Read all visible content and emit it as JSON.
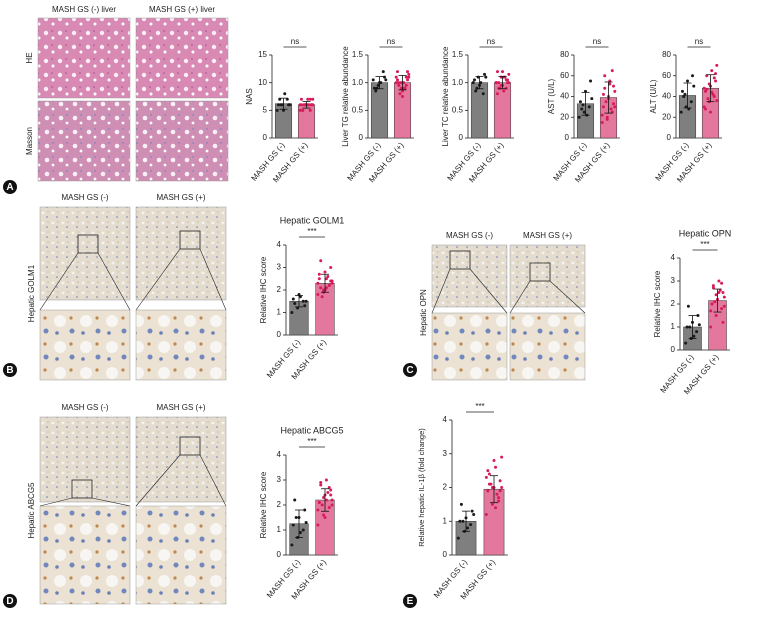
{
  "figure": {
    "A": {
      "letter": "A",
      "columns": [
        "MASH GS (-) liver",
        "MASH GS (+) liver"
      ],
      "rows": [
        "HE",
        "Masson"
      ]
    },
    "B": {
      "letter": "B",
      "columns": [
        "MASH GS (-)",
        "MASH GS (+)"
      ],
      "row": "Hepatic GOLM1"
    },
    "C": {
      "letter": "C",
      "columns": [
        "MASH GS (-)",
        "MASH GS (+)"
      ],
      "row": "Hepatic OPN"
    },
    "D": {
      "letter": "D",
      "columns": [
        "MASH GS (-)",
        "MASH GS (+)"
      ],
      "row": "Hepatic ABCG5"
    },
    "E": {
      "letter": "E"
    }
  },
  "chart_data": [
    {
      "type": "bar",
      "ylabel": "NAS",
      "categories": [
        "MASH GS (-)",
        "MASH GS (+)"
      ],
      "values": [
        6.2,
        6.0
      ],
      "errors": [
        1.0,
        0.6
      ],
      "points": [
        [
          5,
          6,
          7,
          6,
          5,
          6,
          7,
          8,
          6,
          6
        ],
        [
          6,
          6,
          5,
          7,
          6,
          6,
          5,
          6,
          7,
          6,
          6,
          5,
          6,
          7,
          6,
          6,
          6,
          5,
          7,
          6
        ]
      ],
      "colors": [
        "#7f7f7f",
        "#e4779d"
      ],
      "point_colors": [
        "#1a1a1a",
        "#d81b5a"
      ],
      "significance": "ns",
      "ylim": [
        0,
        15
      ],
      "yticks": [
        0,
        5,
        10,
        15
      ]
    },
    {
      "type": "bar",
      "ylabel": "Liver TG relative abundance",
      "categories": [
        "MASH GS (-)",
        "MASH GS (+)"
      ],
      "values": [
        1.0,
        1.0
      ],
      "errors": [
        0.11,
        0.13
      ],
      "points": [
        [
          1.05,
          0.95,
          1.2,
          0.9,
          1.0,
          1.1,
          0.85,
          1.0,
          1.05,
          0.9
        ],
        [
          1.0,
          0.9,
          1.1,
          1.2,
          0.85,
          1.05,
          0.95,
          1.0,
          1.15,
          0.8,
          0.9,
          1.1,
          1.0,
          0.95,
          1.05,
          0.75,
          1.2,
          1.0,
          0.9,
          1.1
        ]
      ],
      "colors": [
        "#7f7f7f",
        "#e4779d"
      ],
      "point_colors": [
        "#1a1a1a",
        "#d81b5a"
      ],
      "significance": "ns",
      "ylim": [
        0,
        1.5
      ],
      "yticks": [
        0,
        0.5,
        {
          "value": 1,
          "label": "1.0"
        },
        1.5
      ]
    },
    {
      "type": "bar",
      "ylabel": "Liver TC relative abundance",
      "categories": [
        "MASH GS (-)",
        "MASH GS (+)"
      ],
      "values": [
        1.0,
        1.0
      ],
      "errors": [
        0.11,
        0.11
      ],
      "points": [
        [
          1.0,
          1.1,
          0.8,
          1.05,
          0.95,
          1.15,
          0.85,
          1.0,
          1.1,
          0.9
        ],
        [
          1.0,
          1.1,
          0.9,
          1.2,
          0.95,
          1.05,
          1.0,
          0.85,
          1.15,
          0.9,
          1.1,
          1.0,
          0.95,
          1.05,
          0.8,
          1.2,
          1.0,
          0.9,
          1.1,
          1.0
        ]
      ],
      "colors": [
        "#7f7f7f",
        "#e4779d"
      ],
      "point_colors": [
        "#1a1a1a",
        "#d81b5a"
      ],
      "significance": "ns",
      "ylim": [
        0,
        1.5
      ],
      "yticks": [
        0,
        0.5,
        {
          "value": 1,
          "label": "1.0"
        },
        1.5
      ]
    },
    {
      "type": "bar",
      "ylabel": "AST (U/L)",
      "categories": [
        "MASH GS (-)",
        "MASH GS (+)"
      ],
      "values": [
        33,
        39
      ],
      "errors": [
        11,
        15
      ],
      "points": [
        [
          20,
          25,
          30,
          35,
          45,
          55,
          28,
          22,
          38,
          32
        ],
        [
          15,
          20,
          25,
          30,
          40,
          50,
          60,
          55,
          45,
          35,
          28,
          22,
          18,
          65,
          42,
          38,
          33,
          48,
          52,
          30
        ]
      ],
      "colors": [
        "#7f7f7f",
        "#e4779d"
      ],
      "point_colors": [
        "#1a1a1a",
        "#d81b5a"
      ],
      "significance": "ns",
      "ylim": [
        0,
        80
      ],
      "yticks": [
        0,
        20,
        40,
        60,
        80
      ]
    },
    {
      "type": "bar",
      "ylabel": "ALT (U/L)",
      "categories": [
        "MASH GS (-)",
        "MASH GS (+)"
      ],
      "values": [
        41,
        48
      ],
      "errors": [
        12,
        13
      ],
      "points": [
        [
          25,
          30,
          35,
          45,
          55,
          60,
          40,
          28,
          50,
          42
        ],
        [
          30,
          35,
          40,
          45,
          50,
          55,
          60,
          65,
          70,
          38,
          42,
          48,
          52,
          58,
          28,
          25,
          62,
          47,
          44,
          36
        ]
      ],
      "colors": [
        "#7f7f7f",
        "#e4779d"
      ],
      "point_colors": [
        "#1a1a1a",
        "#d81b5a"
      ],
      "significance": "ns",
      "ylim": [
        0,
        80
      ],
      "yticks": [
        0,
        20,
        40,
        60,
        80
      ]
    },
    {
      "type": "bar",
      "title": "Hepatic GOLM1",
      "ylabel": "Relative IHC score",
      "categories": [
        "MASH GS (-)",
        "MASH GS (+)"
      ],
      "values": [
        1.5,
        2.3
      ],
      "errors": [
        0.25,
        0.4
      ],
      "points": [
        [
          1.0,
          1.2,
          1.5,
          1.6,
          1.8,
          1.3,
          1.4,
          1.7,
          1.5
        ],
        [
          1.8,
          2.0,
          2.2,
          2.5,
          2.8,
          3.0,
          3.3,
          2.1,
          2.4,
          1.7,
          2.6,
          2.3,
          1.9,
          2.2,
          2.7,
          2.0,
          2.4,
          2.1,
          2.5,
          2.3
        ]
      ],
      "colors": [
        "#7f7f7f",
        "#e4779d"
      ],
      "point_colors": [
        "#1a1a1a",
        "#d81b5a"
      ],
      "significance": "***",
      "ylim": [
        0,
        4
      ],
      "yticks": [
        0,
        1,
        2,
        3,
        4
      ]
    },
    {
      "type": "bar",
      "title": "Hepatic OPN",
      "ylabel": "Relative IHC score",
      "categories": [
        "MASH GS (-)",
        "MASH GS (+)"
      ],
      "values": [
        1.0,
        2.15
      ],
      "errors": [
        0.5,
        0.5
      ],
      "points": [
        [
          0.3,
          0.5,
          0.8,
          1.0,
          1.2,
          1.5,
          1.9,
          0.6,
          1.1,
          1.0
        ],
        [
          1.0,
          1.5,
          1.8,
          2.0,
          2.2,
          2.5,
          2.8,
          3.0,
          2.3,
          2.1,
          2.6,
          1.7,
          2.4,
          2.9,
          2.0,
          2.2,
          1.2,
          2.7,
          2.5,
          1.9
        ]
      ],
      "colors": [
        "#7f7f7f",
        "#e4779d"
      ],
      "point_colors": [
        "#1a1a1a",
        "#d81b5a"
      ],
      "significance": "***",
      "ylim": [
        0,
        4
      ],
      "yticks": [
        0,
        1,
        2,
        3,
        4
      ]
    },
    {
      "type": "bar",
      "title": "Hepatic ABCG5",
      "ylabel": "Relative IHC score",
      "categories": [
        "MASH GS (-)",
        "MASH GS (+)"
      ],
      "values": [
        1.25,
        2.2
      ],
      "errors": [
        0.55,
        0.45
      ],
      "points": [
        [
          0.4,
          0.7,
          1.0,
          1.2,
          1.5,
          1.8,
          2.2,
          0.9,
          1.3,
          1.5
        ],
        [
          1.2,
          1.6,
          1.9,
          2.1,
          2.4,
          2.6,
          2.9,
          3.0,
          2.2,
          2.0,
          2.5,
          1.8,
          2.3,
          2.7,
          2.1,
          1.5,
          2.4,
          2.8,
          2.2,
          2.0
        ]
      ],
      "colors": [
        "#7f7f7f",
        "#e4779d"
      ],
      "point_colors": [
        "#1a1a1a",
        "#d81b5a"
      ],
      "significance": "***",
      "ylim": [
        0,
        4
      ],
      "yticks": [
        0,
        1,
        2,
        3,
        4
      ]
    },
    {
      "type": "bar",
      "ylabel": "Relative hepatic IL-1β (fold change)",
      "categories": [
        "MASH GS (-)",
        "MASH GS (+)"
      ],
      "values": [
        1.0,
        1.95
      ],
      "errors": [
        0.3,
        0.4
      ],
      "points": [
        [
          0.5,
          0.7,
          0.9,
          1.0,
          1.1,
          1.3,
          1.5,
          0.8,
          1.2,
          1.0
        ],
        [
          1.2,
          1.5,
          1.7,
          1.9,
          2.0,
          2.2,
          2.4,
          2.6,
          2.9,
          2.1,
          1.8,
          2.3,
          2.0,
          1.6,
          2.5,
          2.8,
          1.9,
          2.1,
          1.4,
          2.0
        ]
      ],
      "colors": [
        "#7f7f7f",
        "#e4779d"
      ],
      "point_colors": [
        "#1a1a1a",
        "#d81b5a"
      ],
      "significance": "***",
      "ylim": [
        0,
        4
      ],
      "yticks": [
        0,
        1,
        2,
        3,
        4
      ]
    }
  ]
}
